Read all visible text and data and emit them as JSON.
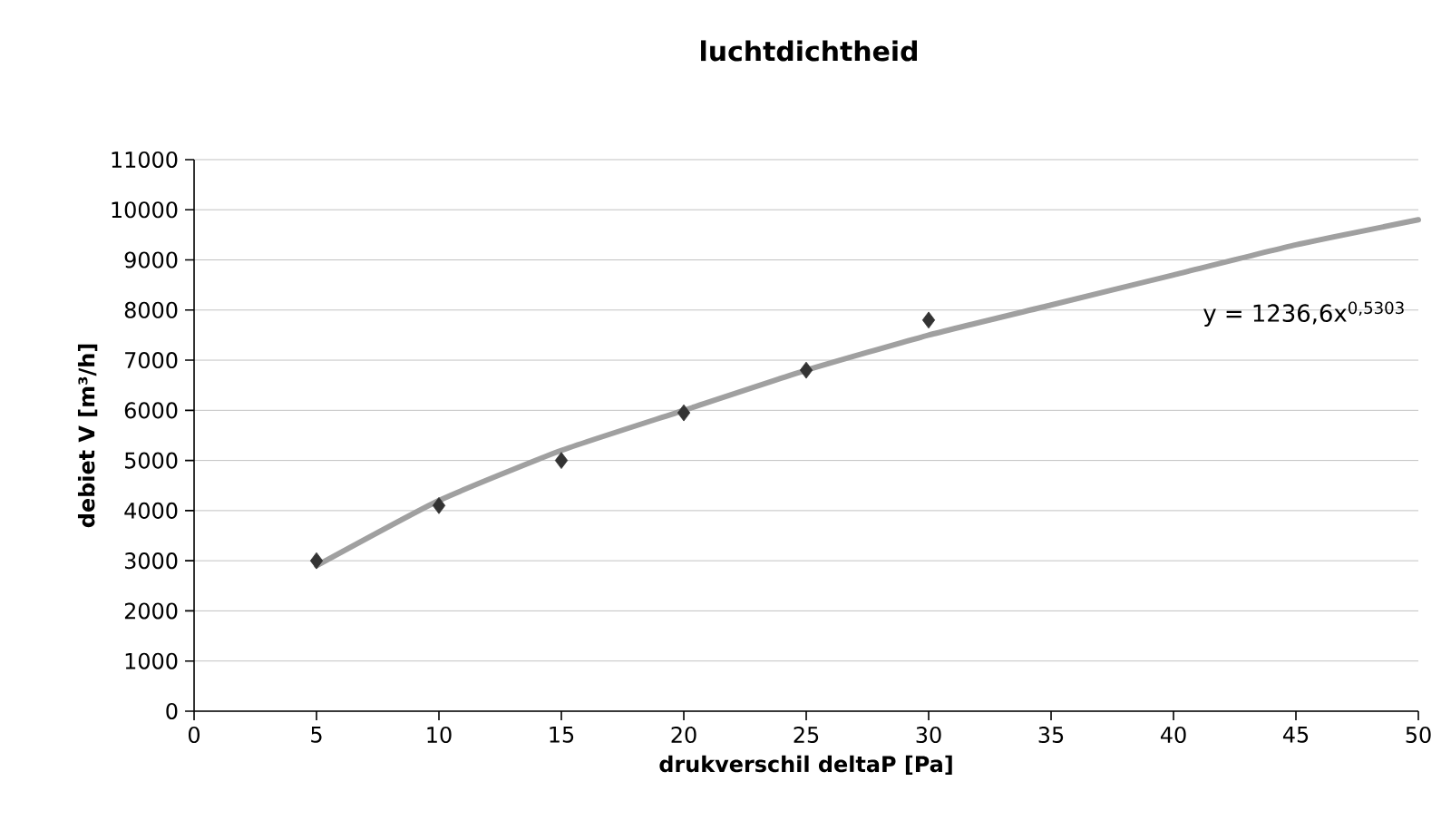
{
  "chart_data": {
    "type": "scatter",
    "title": "luchtdichtheid",
    "xlabel": "drukverschil deltaP [Pa]",
    "ylabel": "debiet V [m³/h]",
    "xlim": [
      0,
      50
    ],
    "xticks": [
      0,
      5,
      10,
      15,
      20,
      25,
      30,
      35,
      40,
      45,
      50
    ],
    "ylim": [
      0,
      11000
    ],
    "yticks": [
      0,
      1000,
      2000,
      3000,
      4000,
      5000,
      6000,
      7000,
      8000,
      9000,
      10000,
      11000
    ],
    "grid": "y",
    "series": [
      {
        "marker": "diamond",
        "color": "#333333",
        "x": [
          5,
          10,
          15,
          20,
          25,
          30
        ],
        "values": [
          3000,
          4100,
          5000,
          5950,
          6800,
          7800
        ]
      },
      {
        "type": "line",
        "marker": "none",
        "line_style": "solid",
        "color": "#a0a0a0",
        "x": [
          5,
          10,
          15,
          20,
          25,
          30,
          35,
          40,
          45,
          50
        ],
        "values": [
          2900,
          4200,
          5200,
          6000,
          6800,
          7500,
          8100,
          8700,
          9300,
          9800
        ]
      }
    ],
    "annotations": [
      "y = 1236,6x$^{0,5303}$"
    ]
  }
}
